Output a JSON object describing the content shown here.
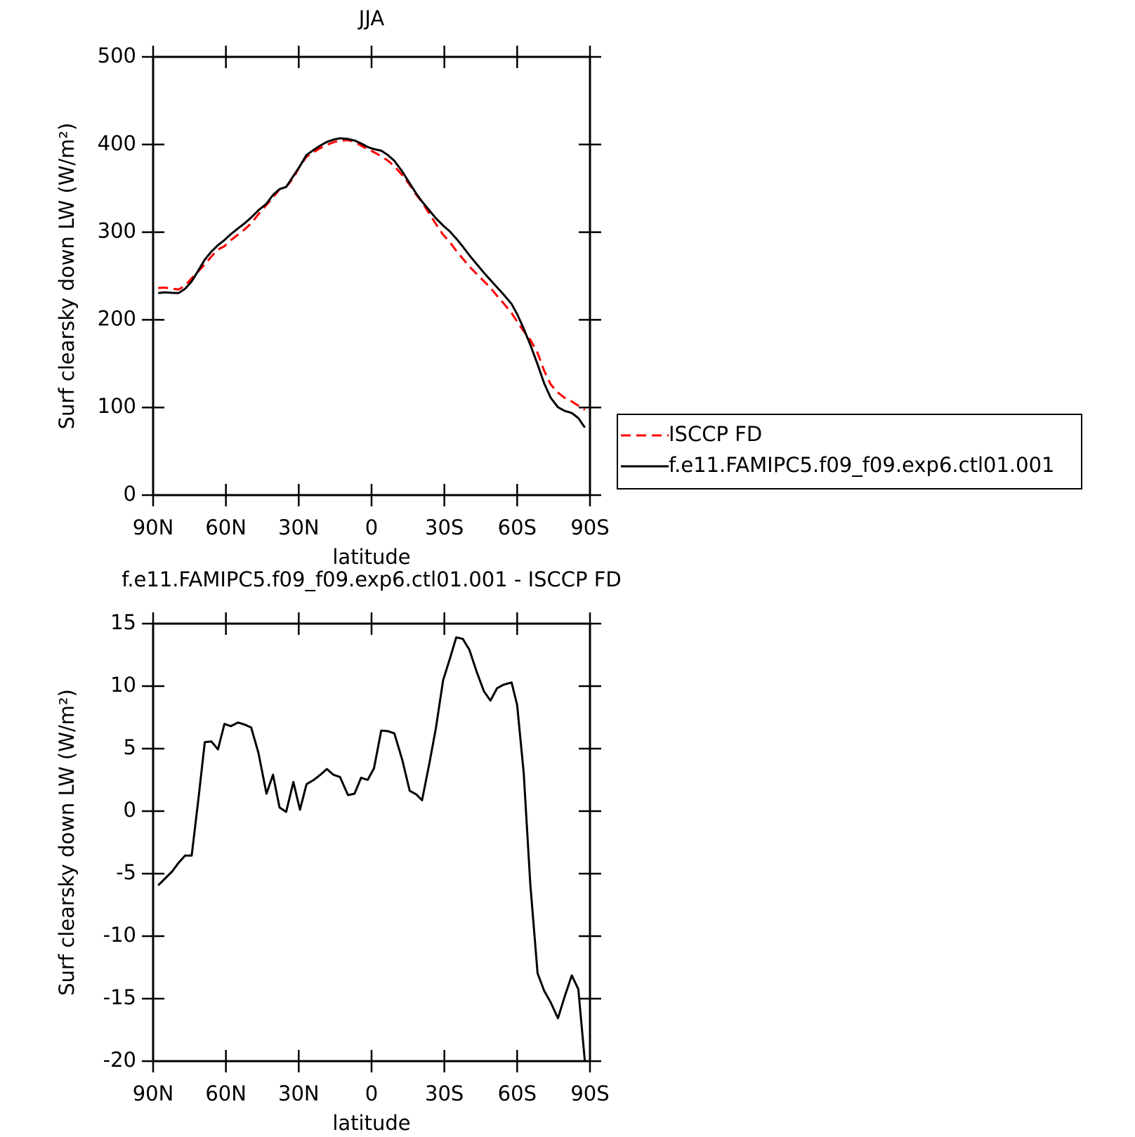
{
  "chart_data": [
    {
      "type": "line",
      "title": "JJA",
      "xlabel": "latitude",
      "ylabel": "Surf clearsky down LW (W/m²)",
      "x": [
        87.9,
        85.2,
        82.2,
        79.5,
        76.8,
        74.1,
        71.4,
        68.7,
        66.0,
        63.3,
        60.6,
        58.0,
        55.0,
        52.3,
        49.6,
        46.6,
        43.3,
        40.6,
        37.9,
        35.2,
        32.2,
        29.5,
        26.8,
        23.8,
        21.1,
        18.4,
        15.7,
        13.0,
        9.7,
        7.0,
        4.3,
        1.6,
        -1.0,
        -4.0,
        -6.7,
        -9.4,
        -12.7,
        -15.7,
        -18.4,
        -20.8,
        -23.8,
        -26.5,
        -29.5,
        -32.2,
        -34.9,
        -37.6,
        -40.3,
        -43.3,
        -46.3,
        -49.0,
        -51.7,
        -54.4,
        -57.7,
        -60.0,
        -62.7,
        -65.4,
        -68.4,
        -71.1,
        -73.8,
        -76.8,
        -79.5,
        -82.5,
        -85.2,
        -87.9
      ],
      "series": [
        {
          "name": "ISCCP FD",
          "color": "#ff0000",
          "dash": true,
          "values": [
            236.4,
            236.7,
            235.6,
            234.6,
            239.1,
            247.4,
            255.3,
            263.2,
            272.2,
            280.3,
            284.0,
            290.9,
            297.2,
            303.2,
            310.0,
            320.4,
            331.1,
            339.6,
            348.8,
            351.7,
            361.7,
            375.5,
            386.0,
            391.4,
            395.9,
            399.6,
            402.6,
            404.4,
            405.0,
            403.2,
            398.6,
            394.7,
            391.3,
            386.6,
            381.7,
            375.2,
            364.9,
            354.1,
            342.8,
            334.1,
            321.2,
            309.3,
            297.1,
            288.9,
            278.8,
            269.8,
            260.7,
            252.5,
            244.1,
            236.6,
            227.3,
            218.8,
            207.8,
            198.0,
            186.9,
            177.4,
            162.2,
            142.1,
            126.4,
            116.9,
            111.1,
            106.8,
            102.1,
            97.1
          ]
        },
        {
          "name": "f.e11.FAMIPC5.f09_f09.exp6.ctl01.001",
          "color": "#000000",
          "dash": false,
          "values": [
            230.5,
            231.3,
            230.8,
            230.5,
            235.5,
            243.8,
            256.2,
            268.7,
            277.8,
            285.2,
            291.0,
            297.7,
            304.3,
            310.1,
            316.7,
            325.0,
            332.5,
            342.5,
            349.1,
            351.6,
            364.0,
            375.6,
            388.1,
            393.9,
            398.8,
            403.0,
            405.5,
            407.1,
            406.3,
            404.6,
            401.3,
            397.2,
            394.7,
            393.0,
            388.1,
            381.4,
            369.0,
            355.7,
            344.1,
            335.0,
            325.0,
            315.9,
            307.6,
            301.0,
            292.7,
            283.6,
            273.6,
            263.7,
            253.7,
            245.4,
            237.1,
            228.9,
            218.1,
            206.5,
            189.9,
            171.6,
            149.2,
            127.7,
            111.1,
            100.3,
            96.2,
            93.7,
            87.9,
            77.1
          ]
        }
      ],
      "xlim": [
        90,
        -90
      ],
      "xticks": [
        {
          "value": 90,
          "label": "90N"
        },
        {
          "value": 60,
          "label": "60N"
        },
        {
          "value": 30,
          "label": "30N"
        },
        0,
        {
          "value": -30,
          "label": "30S"
        },
        {
          "value": -60,
          "label": "60S"
        },
        {
          "value": -90,
          "label": "90S"
        }
      ],
      "ylim": [
        0,
        500
      ],
      "yticks": [
        0,
        100,
        200,
        300,
        400,
        500
      ]
    },
    {
      "type": "line",
      "title": "f.e11.FAMIPC5.f09_f09.exp6.ctl01.001 - ISCCP FD",
      "xlabel": "latitude",
      "ylabel": "Surf clearsky down LW (W/m²)",
      "x": [
        87.9,
        85.2,
        82.2,
        79.5,
        76.8,
        74.1,
        71.4,
        68.7,
        66.0,
        63.3,
        60.6,
        58.0,
        55.0,
        52.3,
        49.6,
        46.6,
        43.3,
        40.6,
        37.9,
        35.2,
        32.2,
        29.5,
        26.8,
        23.8,
        21.1,
        18.4,
        15.7,
        13.0,
        9.7,
        7.0,
        4.3,
        1.6,
        -1.0,
        -4.0,
        -6.7,
        -9.4,
        -12.7,
        -15.7,
        -18.4,
        -20.8,
        -23.8,
        -26.5,
        -29.5,
        -32.2,
        -34.9,
        -37.6,
        -40.3,
        -43.3,
        -46.3,
        -49.0,
        -51.7,
        -54.4,
        -57.7,
        -60.0,
        -62.7,
        -65.4,
        -68.4,
        -71.1,
        -73.8,
        -76.8,
        -79.5,
        -82.5,
        -85.2,
        -87.9
      ],
      "series": [
        {
          "color": "#000000",
          "dash": false,
          "values": [
            -5.93,
            -5.41,
            -4.83,
            -4.13,
            -3.55,
            -3.55,
            0.87,
            5.52,
            5.58,
            4.94,
            6.98,
            6.8,
            7.09,
            6.92,
            6.69,
            4.65,
            1.4,
            2.91,
            0.29,
            -0.06,
            2.33,
            0.12,
            2.15,
            2.5,
            2.91,
            3.37,
            2.91,
            2.73,
            1.28,
            1.4,
            2.67,
            2.5,
            3.43,
            6.45,
            6.4,
            6.22,
            4.07,
            1.63,
            1.34,
            0.87,
            3.78,
            6.63,
            10.47,
            12.15,
            13.9,
            13.78,
            12.91,
            11.16,
            9.59,
            8.84,
            9.83,
            10.12,
            10.29,
            8.49,
            3.02,
            -5.81,
            -12.97,
            -14.36,
            -15.29,
            -16.57,
            -14.88,
            -13.14,
            -14.24,
            -20.0
          ]
        }
      ],
      "xlim": [
        90,
        -90
      ],
      "xticks": [
        {
          "value": 90,
          "label": "90N"
        },
        {
          "value": 60,
          "label": "60N"
        },
        {
          "value": 30,
          "label": "30N"
        },
        0,
        {
          "value": -30,
          "label": "30S"
        },
        {
          "value": -60,
          "label": "60S"
        },
        {
          "value": -90,
          "label": "90S"
        }
      ],
      "ylim": [
        -20,
        15
      ],
      "yticks": [
        -20,
        -15,
        -10,
        -5,
        0,
        5,
        10,
        15
      ]
    }
  ]
}
